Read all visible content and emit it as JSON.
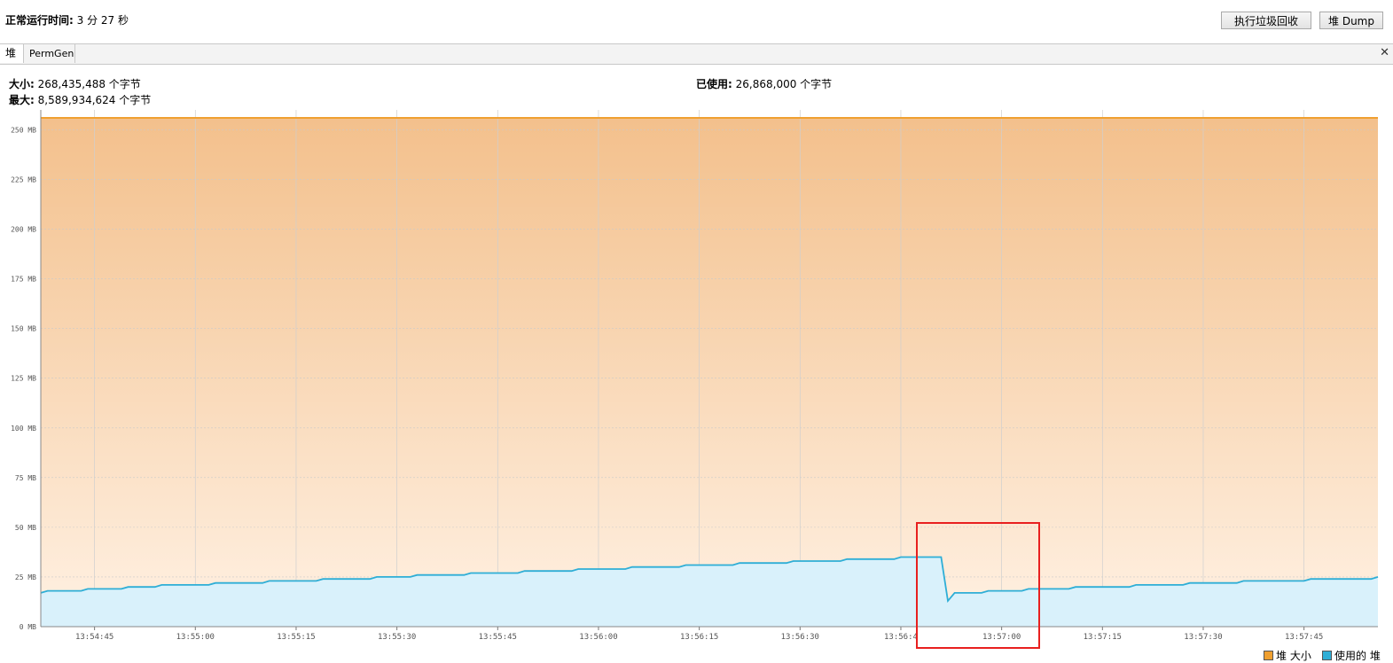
{
  "header": {
    "uptime_label": "正常运行时间:",
    "uptime_value": "3 分 27 秒",
    "gc_button": "执行垃圾回收",
    "dump_button": "堆 Dump"
  },
  "tabs": [
    {
      "label": "堆"
    },
    {
      "label": "PermGen"
    }
  ],
  "tab_close": "✕",
  "info": {
    "size_label": "大小:",
    "size_value": "268,435,488 个字节",
    "max_label": "最大:",
    "max_value": "8,589,934,624 个字节",
    "used_label": "已使用:",
    "used_value": "26,868,000 个字节"
  },
  "chart_data": {
    "type": "area",
    "ylim": [
      0,
      260
    ],
    "y_unit": "MB",
    "yticks": [
      "0 MB",
      "25 MB",
      "50 MB",
      "75 MB",
      "100 MB",
      "125 MB",
      "150 MB",
      "175 MB",
      "200 MB",
      "225 MB",
      "250 MB"
    ],
    "xticks": [
      "13:54:45",
      "13:55:00",
      "13:55:15",
      "13:55:30",
      "13:55:45",
      "13:56:00",
      "13:56:15",
      "13:56:30",
      "13:56:4",
      "13:57:00",
      "13:57:15",
      "13:57:30",
      "13:57:45"
    ],
    "x_start": "13:54:37",
    "x_end": "13:57:56",
    "grid": true,
    "legend_position": "bottom-right",
    "series": [
      {
        "name": "堆 大小",
        "color": "#f0a030",
        "points": [
          [
            "13:54:37",
            256
          ],
          [
            "13:57:56",
            256
          ]
        ]
      },
      {
        "name": "使用的 堆",
        "color": "#2eaed6",
        "points": [
          [
            "13:54:37",
            17
          ],
          [
            "13:54:38",
            18
          ],
          [
            "13:54:43",
            18
          ],
          [
            "13:54:44",
            19
          ],
          [
            "13:54:49",
            19
          ],
          [
            "13:54:50",
            20
          ],
          [
            "13:54:54",
            20
          ],
          [
            "13:54:55",
            21
          ],
          [
            "13:55:02",
            21
          ],
          [
            "13:55:03",
            22
          ],
          [
            "13:55:10",
            22
          ],
          [
            "13:55:11",
            23
          ],
          [
            "13:55:18",
            23
          ],
          [
            "13:55:19",
            24
          ],
          [
            "13:55:26",
            24
          ],
          [
            "13:55:27",
            25
          ],
          [
            "13:55:32",
            25
          ],
          [
            "13:55:33",
            26
          ],
          [
            "13:55:40",
            26
          ],
          [
            "13:55:41",
            27
          ],
          [
            "13:55:48",
            27
          ],
          [
            "13:55:49",
            28
          ],
          [
            "13:55:56",
            28
          ],
          [
            "13:55:57",
            29
          ],
          [
            "13:56:04",
            29
          ],
          [
            "13:56:05",
            30
          ],
          [
            "13:56:12",
            30
          ],
          [
            "13:56:13",
            31
          ],
          [
            "13:56:20",
            31
          ],
          [
            "13:56:21",
            32
          ],
          [
            "13:56:28",
            32
          ],
          [
            "13:56:29",
            33
          ],
          [
            "13:56:36",
            33
          ],
          [
            "13:56:37",
            34
          ],
          [
            "13:56:44",
            34
          ],
          [
            "13:56:45",
            35
          ],
          [
            "13:56:51",
            35
          ],
          [
            "13:56:52",
            13
          ],
          [
            "13:56:53",
            17
          ],
          [
            "13:56:57",
            17
          ],
          [
            "13:56:58",
            18
          ],
          [
            "13:57:03",
            18
          ],
          [
            "13:57:04",
            19
          ],
          [
            "13:57:10",
            19
          ],
          [
            "13:57:11",
            20
          ],
          [
            "13:57:19",
            20
          ],
          [
            "13:57:20",
            21
          ],
          [
            "13:57:27",
            21
          ],
          [
            "13:57:28",
            22
          ],
          [
            "13:57:35",
            22
          ],
          [
            "13:57:36",
            23
          ],
          [
            "13:57:45",
            23
          ],
          [
            "13:57:46",
            24
          ],
          [
            "13:57:55",
            24
          ],
          [
            "13:57:56",
            25
          ]
        ]
      }
    ]
  }
}
